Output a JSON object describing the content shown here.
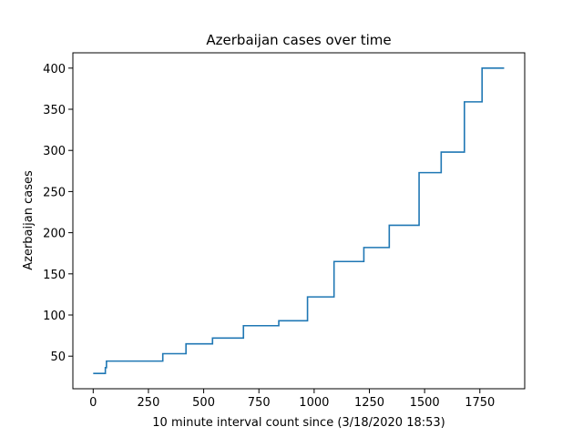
{
  "chart_data": {
    "type": "line",
    "title": "Azerbaijan cases over time",
    "xlabel": "10 minute interval count since (3/18/2020 18:53)",
    "ylabel": "Azerbaijan cases",
    "xlim": [
      -92,
      1953
    ],
    "ylim": [
      10.4,
      418.6
    ],
    "xticks": [
      0,
      250,
      500,
      750,
      1000,
      1250,
      1500,
      1750
    ],
    "yticks": [
      50,
      100,
      150,
      200,
      250,
      300,
      350,
      400
    ],
    "grid": false,
    "line_color": "#1f77b4",
    "drawstyle": "steps-post",
    "series": [
      {
        "x": [
          0,
          50,
          55,
          60,
          315,
          420,
          540,
          680,
          840,
          970,
          1090,
          1225,
          1340,
          1475,
          1575,
          1680,
          1760,
          1860
        ],
        "y": [
          29,
          29,
          36,
          44,
          53,
          65,
          72,
          87,
          93,
          122,
          165,
          182,
          209,
          273,
          298,
          359,
          400,
          400
        ]
      }
    ]
  }
}
